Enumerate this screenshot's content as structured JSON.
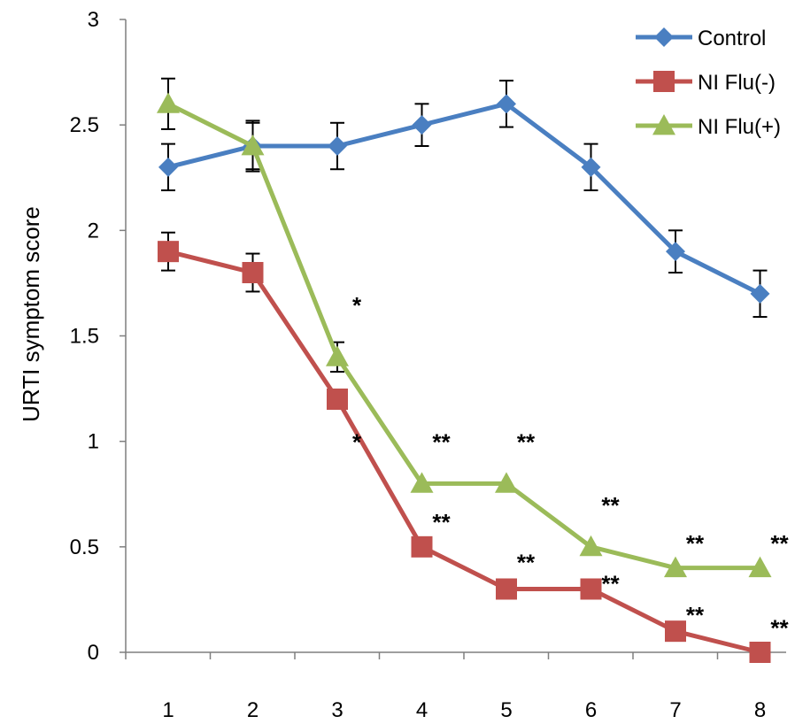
{
  "chart_data": {
    "type": "line",
    "title": "",
    "xlabel": "",
    "ylabel": "URTI symptom score",
    "ylim": [
      0,
      3
    ],
    "yticks": [
      "0",
      "0.5",
      "1",
      "1.5",
      "2",
      "2.5",
      "3"
    ],
    "x": [
      "1",
      "2",
      "3",
      "4",
      "5",
      "6",
      "7",
      "8"
    ],
    "grid": false,
    "legend_position": "top-right",
    "series": [
      {
        "name": "Control",
        "color": "#4a7fc1",
        "marker": "diamond",
        "values": [
          2.3,
          2.4,
          2.4,
          2.5,
          2.6,
          2.3,
          1.9,
          1.7
        ],
        "error": [
          0.11,
          0.11,
          0.11,
          0.1,
          0.11,
          0.11,
          0.1,
          0.11
        ]
      },
      {
        "name": "NI Flu(-)",
        "color": "#c0504d",
        "marker": "square",
        "values": [
          1.9,
          1.8,
          1.2,
          0.5,
          0.3,
          0.3,
          0.1,
          0.0
        ],
        "error": [
          0.09,
          0.09,
          0.0,
          0.0,
          0.0,
          0.0,
          0.0,
          0.0
        ]
      },
      {
        "name": "NI Flu(+)",
        "color": "#9bbb59",
        "marker": "triangle",
        "values": [
          2.6,
          2.4,
          1.4,
          0.8,
          0.8,
          0.5,
          0.4,
          0.4
        ],
        "error": [
          0.12,
          0.12,
          0.07,
          0.0,
          0.0,
          0.0,
          0.0,
          0.0
        ]
      }
    ],
    "annotations": [
      {
        "text": "*",
        "x": "3",
        "y": 1.65
      },
      {
        "text": "*",
        "x": "3",
        "y": 1.0
      },
      {
        "text": "**",
        "x": "4",
        "y": 1.0
      },
      {
        "text": "**",
        "x": "4",
        "y": 0.62
      },
      {
        "text": "**",
        "x": "5",
        "y": 1.0
      },
      {
        "text": "**",
        "x": "5",
        "y": 0.43
      },
      {
        "text": "**",
        "x": "6",
        "y": 0.7
      },
      {
        "text": "**",
        "x": "6",
        "y": 0.33
      },
      {
        "text": "**",
        "x": "7",
        "y": 0.52
      },
      {
        "text": "**",
        "x": "7",
        "y": 0.18
      },
      {
        "text": "**",
        "x": "8",
        "y": 0.52
      },
      {
        "text": "**",
        "x": "8",
        "y": 0.12
      }
    ]
  }
}
